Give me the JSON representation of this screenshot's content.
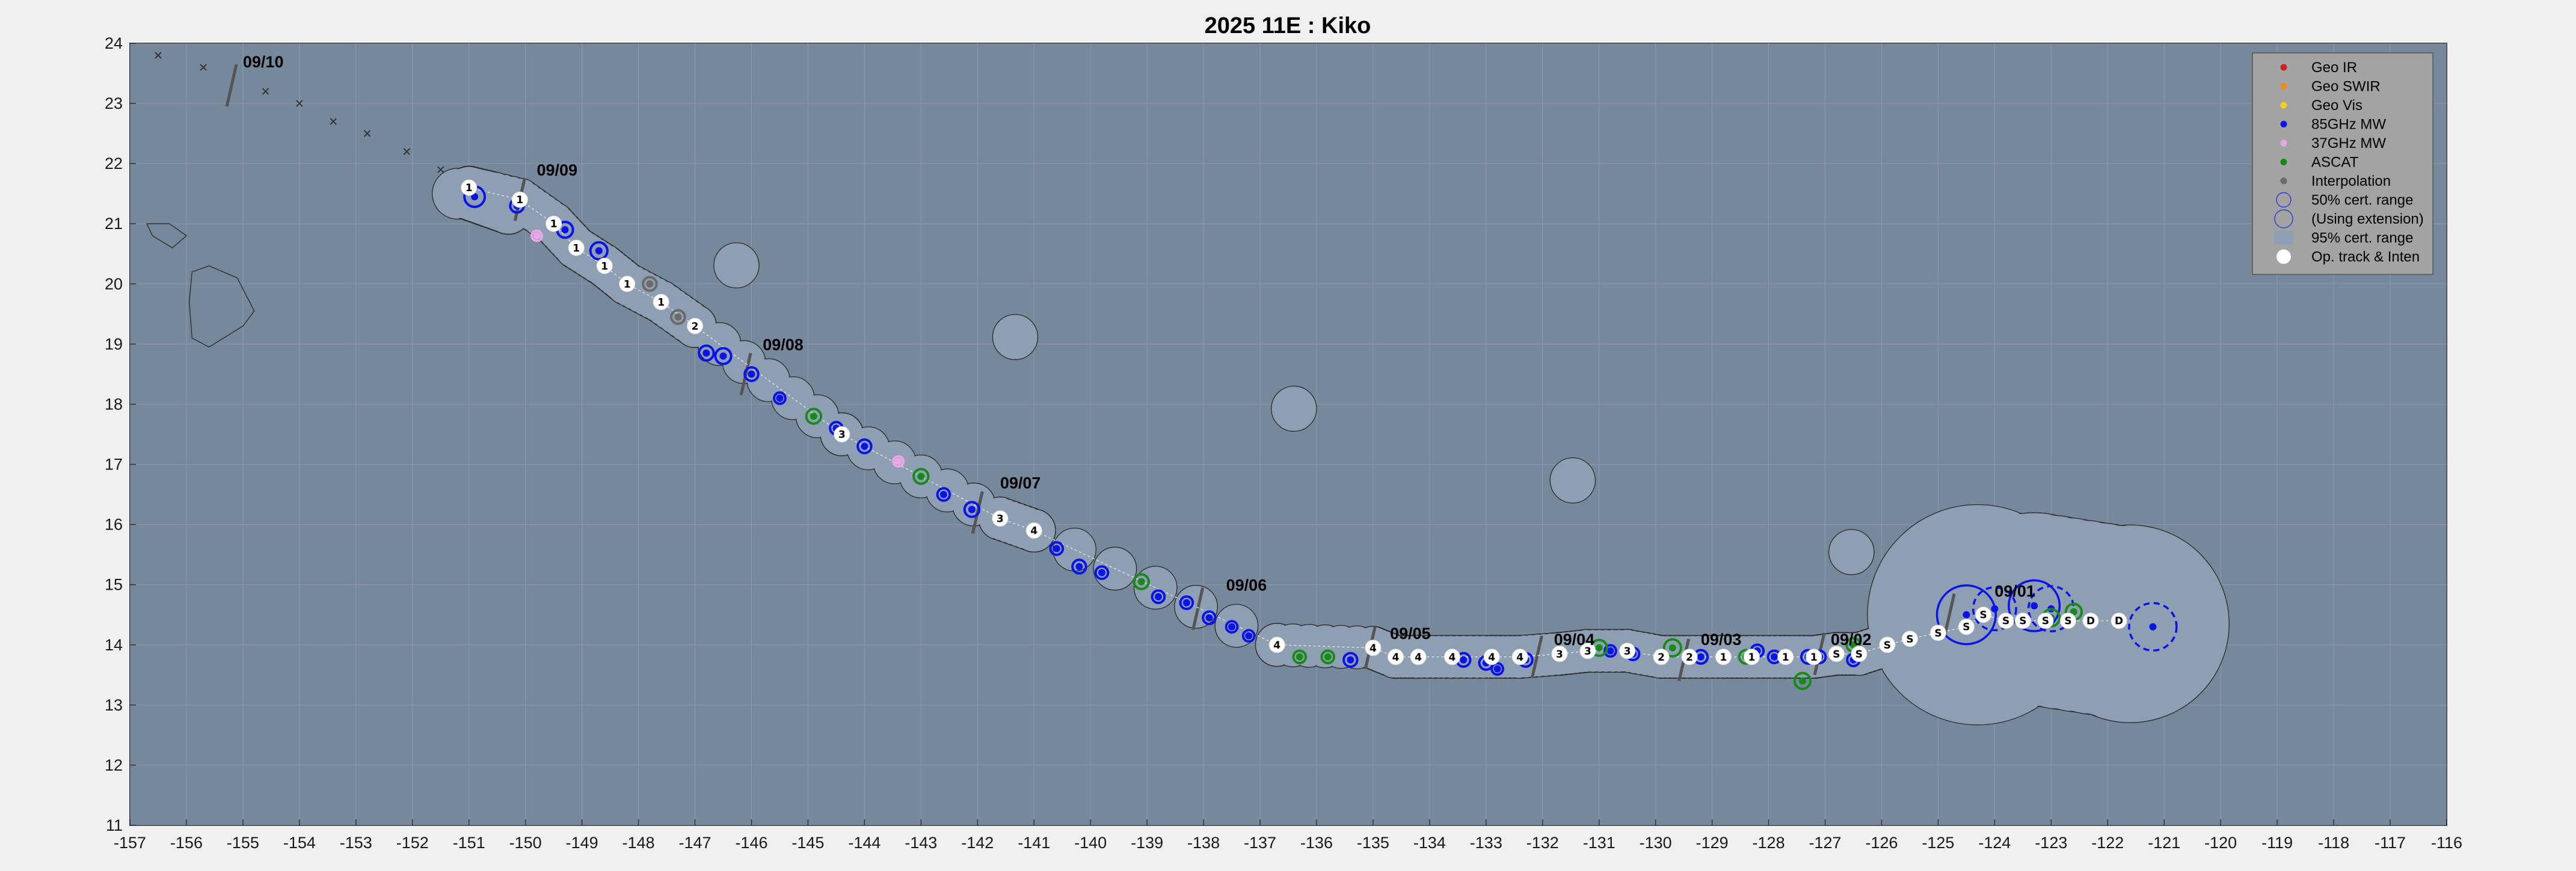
{
  "chart_data": {
    "type": "scatter",
    "title": "2025  11E :  Kiko",
    "xlim": [
      -157,
      -116
    ],
    "ylim": [
      11,
      24
    ],
    "x_ticks": [
      -157,
      -156,
      -155,
      -154,
      -153,
      -152,
      -151,
      -150,
      -149,
      -148,
      -147,
      -146,
      -145,
      -144,
      -143,
      -142,
      -141,
      -140,
      -139,
      -138,
      -137,
      -136,
      -135,
      -134,
      -133,
      -132,
      -131,
      -130,
      -129,
      -128,
      -127,
      -126,
      -125,
      -124,
      -123,
      -122,
      -121,
      -120,
      -119,
      -118,
      -117,
      -116
    ],
    "y_ticks": [
      11,
      12,
      13,
      14,
      15,
      16,
      17,
      18,
      19,
      20,
      21,
      22,
      23,
      24
    ],
    "grid": true,
    "legend_position": "top-right",
    "colors": {
      "background": "#76889c",
      "cone": "#8e9fb4",
      "ir": "#d42020",
      "swir": "#f08a1a",
      "vis": "#f2d21a",
      "mw85": "#0a14e6",
      "mw37": "#e8a8e8",
      "ascat": "#178a17",
      "interp": "#6a6a6a",
      "op": "#ffffff"
    },
    "legend": [
      {
        "label": "Geo IR",
        "kind": "dot",
        "color": "#d42020"
      },
      {
        "label": "Geo SWIR",
        "kind": "dot",
        "color": "#f08a1a"
      },
      {
        "label": "Geo Vis",
        "kind": "dot",
        "color": "#f2d21a"
      },
      {
        "label": "85GHz MW",
        "kind": "dot",
        "color": "#0a14e6"
      },
      {
        "label": "37GHz MW",
        "kind": "dot",
        "color": "#e8a8e8"
      },
      {
        "label": "ASCAT",
        "kind": "dot",
        "color": "#178a17"
      },
      {
        "label": "Interpolation",
        "kind": "dot",
        "color": "#6a6a6a"
      },
      {
        "label": "50% cert. range",
        "kind": "ring",
        "color": "#3a3ad0"
      },
      {
        "label": "(Using extension)",
        "kind": "ring-big",
        "color": "#3a3ad0"
      },
      {
        "label": "95% cert. range",
        "kind": "box",
        "color": "#8e9fb4"
      },
      {
        "label": "Op. track & Inten",
        "kind": "white",
        "color": "#ffffff"
      }
    ],
    "date_labels": [
      {
        "text": "09/10",
        "x": -155.0,
        "y": 23.6
      },
      {
        "text": "09/09",
        "x": -149.8,
        "y": 21.8
      },
      {
        "text": "09/08",
        "x": -145.8,
        "y": 18.9
      },
      {
        "text": "09/07",
        "x": -141.6,
        "y": 16.6
      },
      {
        "text": "09/06",
        "x": -137.6,
        "y": 14.9
      },
      {
        "text": "09/05",
        "x": -134.7,
        "y": 14.1
      },
      {
        "text": "09/04",
        "x": -131.8,
        "y": 14.0
      },
      {
        "text": "09/03",
        "x": -129.2,
        "y": 14.0
      },
      {
        "text": "09/02",
        "x": -126.9,
        "y": 14.0
      },
      {
        "text": "09/01",
        "x": -124.0,
        "y": 14.8
      }
    ],
    "day_ticks": [
      {
        "x": -155.2,
        "y": 23.3
      },
      {
        "x": -150.1,
        "y": 21.4
      },
      {
        "x": -146.1,
        "y": 18.5
      },
      {
        "x": -142.0,
        "y": 16.2
      },
      {
        "x": -138.1,
        "y": 14.6
      },
      {
        "x": -135.05,
        "y": 13.95
      },
      {
        "x": -132.1,
        "y": 13.8
      },
      {
        "x": -129.5,
        "y": 13.75
      },
      {
        "x": -127.1,
        "y": 13.85
      },
      {
        "x": -124.8,
        "y": 14.5
      }
    ],
    "forecast_track": [
      {
        "x": -156.5,
        "y": 23.8
      },
      {
        "x": -155.7,
        "y": 23.6
      },
      {
        "x": -154.6,
        "y": 23.2
      },
      {
        "x": -154.0,
        "y": 23.0
      },
      {
        "x": -153.4,
        "y": 22.7
      },
      {
        "x": -152.8,
        "y": 22.5
      },
      {
        "x": -152.1,
        "y": 22.2
      },
      {
        "x": -151.5,
        "y": 21.9
      }
    ],
    "op_track": [
      {
        "x": -151.0,
        "y": 21.6,
        "label": "1"
      },
      {
        "x": -150.1,
        "y": 21.4,
        "label": "1"
      },
      {
        "x": -149.5,
        "y": 21.0,
        "label": "1"
      },
      {
        "x": -149.1,
        "y": 20.6,
        "label": "1"
      },
      {
        "x": -148.6,
        "y": 20.3,
        "label": "1"
      },
      {
        "x": -148.2,
        "y": 20.0,
        "label": "1"
      },
      {
        "x": -147.6,
        "y": 19.7,
        "label": "1"
      },
      {
        "x": -147.0,
        "y": 19.3,
        "label": "2"
      },
      {
        "x": -144.4,
        "y": 17.5,
        "label": "3"
      },
      {
        "x": -141.6,
        "y": 16.1,
        "label": "3"
      },
      {
        "x": -141.0,
        "y": 15.9,
        "label": "4"
      },
      {
        "x": -136.7,
        "y": 14.0,
        "label": "4"
      },
      {
        "x": -135.0,
        "y": 13.95,
        "label": "4"
      },
      {
        "x": -134.6,
        "y": 13.8,
        "label": "4"
      },
      {
        "x": -134.2,
        "y": 13.8,
        "label": "4"
      },
      {
        "x": -133.6,
        "y": 13.8,
        "label": "4"
      },
      {
        "x": -132.9,
        "y": 13.8,
        "label": "4"
      },
      {
        "x": -132.4,
        "y": 13.8,
        "label": "4"
      },
      {
        "x": -131.7,
        "y": 13.85,
        "label": "3"
      },
      {
        "x": -131.2,
        "y": 13.9,
        "label": "3"
      },
      {
        "x": -130.5,
        "y": 13.9,
        "label": "3"
      },
      {
        "x": -129.9,
        "y": 13.8,
        "label": "2"
      },
      {
        "x": -129.4,
        "y": 13.8,
        "label": "2"
      },
      {
        "x": -128.8,
        "y": 13.8,
        "label": "1"
      },
      {
        "x": -128.3,
        "y": 13.8,
        "label": "1"
      },
      {
        "x": -127.7,
        "y": 13.8,
        "label": "1"
      },
      {
        "x": -127.2,
        "y": 13.8,
        "label": "1"
      },
      {
        "x": -126.8,
        "y": 13.85,
        "label": "S"
      },
      {
        "x": -126.4,
        "y": 13.85,
        "label": "S"
      },
      {
        "x": -125.9,
        "y": 14.0,
        "label": "S"
      },
      {
        "x": -125.5,
        "y": 14.1,
        "label": "S"
      },
      {
        "x": -125.0,
        "y": 14.2,
        "label": "S"
      },
      {
        "x": -124.5,
        "y": 14.3,
        "label": "S"
      },
      {
        "x": -124.2,
        "y": 14.5,
        "label": "S"
      },
      {
        "x": -123.8,
        "y": 14.4,
        "label": "S"
      },
      {
        "x": -123.5,
        "y": 14.4,
        "label": "S"
      },
      {
        "x": -123.1,
        "y": 14.4,
        "label": "S"
      },
      {
        "x": -122.7,
        "y": 14.4,
        "label": "S"
      },
      {
        "x": -122.3,
        "y": 14.4,
        "label": "D"
      },
      {
        "x": -121.8,
        "y": 14.4,
        "label": "D"
      }
    ],
    "fixes_85ghz": [
      {
        "x": -150.9,
        "y": 21.45,
        "r": 0.18
      },
      {
        "x": -150.15,
        "y": 21.3,
        "r": 0.12
      },
      {
        "x": -149.3,
        "y": 20.9,
        "r": 0.14
      },
      {
        "x": -148.7,
        "y": 20.55,
        "r": 0.15
      },
      {
        "x": -146.8,
        "y": 18.85,
        "r": 0.13
      },
      {
        "x": -146.5,
        "y": 18.8,
        "r": 0.14
      },
      {
        "x": -146.0,
        "y": 18.5,
        "r": 0.12
      },
      {
        "x": -145.5,
        "y": 18.1,
        "r": 0.1
      },
      {
        "x": -144.5,
        "y": 17.6,
        "r": 0.11
      },
      {
        "x": -144.0,
        "y": 17.3,
        "r": 0.12
      },
      {
        "x": -142.6,
        "y": 16.5,
        "r": 0.11
      },
      {
        "x": -142.1,
        "y": 16.25,
        "r": 0.13
      },
      {
        "x": -141.0,
        "y": 15.9,
        "r": 0.12
      },
      {
        "x": -140.6,
        "y": 15.6,
        "r": 0.11
      },
      {
        "x": -140.2,
        "y": 15.3,
        "r": 0.12
      },
      {
        "x": -139.8,
        "y": 15.2,
        "r": 0.11
      },
      {
        "x": -138.8,
        "y": 14.8,
        "r": 0.11
      },
      {
        "x": -138.3,
        "y": 14.7,
        "r": 0.11
      },
      {
        "x": -137.9,
        "y": 14.45,
        "r": 0.11
      },
      {
        "x": -137.5,
        "y": 14.3,
        "r": 0.1
      },
      {
        "x": -137.2,
        "y": 14.15,
        "r": 0.1
      },
      {
        "x": -135.4,
        "y": 13.75,
        "r": 0.12
      },
      {
        "x": -133.4,
        "y": 13.75,
        "r": 0.12
      },
      {
        "x": -133.0,
        "y": 13.7,
        "r": 0.12
      },
      {
        "x": -132.8,
        "y": 13.6,
        "r": 0.1
      },
      {
        "x": -132.3,
        "y": 13.75,
        "r": 0.12
      },
      {
        "x": -130.8,
        "y": 13.9,
        "r": 0.1
      },
      {
        "x": -130.4,
        "y": 13.85,
        "r": 0.11
      },
      {
        "x": -129.2,
        "y": 13.8,
        "r": 0.12
      },
      {
        "x": -128.8,
        "y": 13.8,
        "r": 0.12
      },
      {
        "x": -128.2,
        "y": 13.9,
        "r": 0.11
      },
      {
        "x": -127.9,
        "y": 13.8,
        "r": 0.11
      },
      {
        "x": -127.3,
        "y": 13.8,
        "r": 0.12
      },
      {
        "x": -127.1,
        "y": 13.8,
        "r": 0.11
      },
      {
        "x": -126.5,
        "y": 13.75,
        "r": 0.11
      },
      {
        "x": -124.5,
        "y": 14.5,
        "r": 0.52
      },
      {
        "x": -123.3,
        "y": 14.65,
        "r": 0.45
      },
      {
        "x": -121.2,
        "y": 14.3,
        "r": 0.42,
        "dashed": true
      },
      {
        "x": -123.0,
        "y": 14.6,
        "r": 0.4,
        "dashed": true
      },
      {
        "x": -124.0,
        "y": 14.6,
        "r": 0.38,
        "dashed": true
      }
    ],
    "fixes_ascat": [
      {
        "x": -144.9,
        "y": 17.8,
        "r": 0.13
      },
      {
        "x": -143.0,
        "y": 16.8,
        "r": 0.13
      },
      {
        "x": -139.1,
        "y": 15.05,
        "r": 0.13
      },
      {
        "x": -136.3,
        "y": 13.8,
        "r": 0.11
      },
      {
        "x": -135.8,
        "y": 13.8,
        "r": 0.11
      },
      {
        "x": -131.0,
        "y": 13.95,
        "r": 0.14
      },
      {
        "x": -129.7,
        "y": 13.95,
        "r": 0.15
      },
      {
        "x": -128.4,
        "y": 13.8,
        "r": 0.12
      },
      {
        "x": -127.4,
        "y": 13.4,
        "r": 0.14
      },
      {
        "x": -126.5,
        "y": 14.0,
        "r": 0.12
      },
      {
        "x": -123.0,
        "y": 14.45,
        "r": 0.15
      },
      {
        "x": -122.6,
        "y": 14.55,
        "r": 0.14
      }
    ],
    "fixes_37ghz": [
      {
        "x": -143.4,
        "y": 17.05,
        "r": 0.09
      },
      {
        "x": -125.5,
        "y": 14.1,
        "r": 0.09
      },
      {
        "x": -149.8,
        "y": 20.8,
        "r": 0.09
      }
    ],
    "fixes_interp": [
      {
        "x": -147.8,
        "y": 20.0,
        "r": 0.12
      },
      {
        "x": -147.3,
        "y": 19.45,
        "r": 0.12
      }
    ]
  }
}
